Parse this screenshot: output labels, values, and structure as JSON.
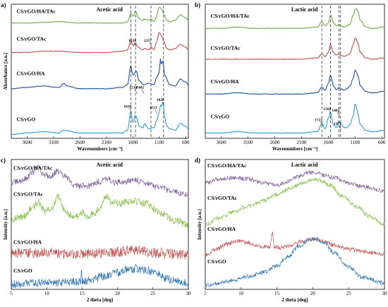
{
  "chart_data": [
    {
      "panel": "a)",
      "type": "line",
      "title": "Acetic acid",
      "xlabel": "Wavenumbers [cm⁻¹]",
      "ylabel": "Absorbance [a.u.]",
      "xlim": [
        3900,
        550
      ],
      "x_reversed": true,
      "xticks": [
        3600,
        3100,
        2600,
        2100,
        1600,
        1100,
        600
      ],
      "grid": false,
      "dashed_guides": [
        1639,
        1550,
        1257,
        1020
      ],
      "series": [
        {
          "name": "CS/rGO/HA/TAc",
          "color": "#70ad47",
          "label_xy": [
            3800,
            0.935
          ],
          "offset": 0.84,
          "shape": "ftir_acetic_tac",
          "x": [
            3900,
            3600,
            3300,
            3000,
            2600,
            2100,
            1800,
            1700,
            1639,
            1590,
            1550,
            1500,
            1420,
            1380,
            1300,
            1257,
            1200,
            1160,
            1100,
            1050,
            1020,
            960,
            900,
            800,
            700,
            600,
            550
          ],
          "y": [
            0.02,
            0.02,
            0.025,
            0.03,
            0.02,
            0.02,
            0.02,
            0.03,
            0.09,
            0.07,
            0.11,
            0.06,
            0.04,
            0.05,
            0.04,
            0.05,
            0.03,
            0.06,
            0.14,
            0.12,
            0.09,
            0.04,
            0.03,
            0.04,
            0.08,
            0.06,
            0.04
          ]
        },
        {
          "name": "CS/rGO/TAc",
          "color": "#c0504d",
          "label_xy": [
            3800,
            0.73
          ],
          "offset": 0.63,
          "shape": "ftir_acetic_tac",
          "x": [
            3900,
            3600,
            3300,
            3000,
            2600,
            2100,
            1800,
            1700,
            1639,
            1590,
            1550,
            1500,
            1420,
            1380,
            1300,
            1257,
            1200,
            1160,
            1100,
            1050,
            1020,
            960,
            900,
            800,
            700,
            600,
            550
          ],
          "y": [
            0.01,
            0.01,
            0.02,
            0.02,
            0.01,
            0.01,
            0.02,
            0.03,
            0.1,
            0.06,
            0.08,
            0.05,
            0.03,
            0.04,
            0.03,
            0.05,
            0.03,
            0.08,
            0.16,
            0.13,
            0.1,
            0.04,
            0.03,
            0.04,
            0.07,
            0.05,
            0.03
          ]
        },
        {
          "name": "CS/rGO/HA",
          "color": "#1f4e9c",
          "label_xy": [
            3800,
            0.47
          ],
          "offset": 0.35,
          "shape": "ftir_acetic_ha",
          "x": [
            3900,
            3600,
            3300,
            3000,
            2900,
            2850,
            2600,
            2100,
            1800,
            1700,
            1639,
            1600,
            1534,
            1480,
            1400,
            1300,
            1200,
            1153,
            1100,
            1080,
            1060,
            1030,
            1000,
            900,
            800,
            700,
            600,
            550
          ],
          "y": [
            0.02,
            0.03,
            0.04,
            0.03,
            0.06,
            0.04,
            0.02,
            0.02,
            0.03,
            0.05,
            0.19,
            0.12,
            0.15,
            0.08,
            0.05,
            0.06,
            0.05,
            0.1,
            0.14,
            0.24,
            0.2,
            0.23,
            0.12,
            0.05,
            0.04,
            0.09,
            0.07,
            0.05
          ]
        },
        {
          "name": "CS/rGO",
          "color": "#2e9bd6",
          "label_xy": [
            3800,
            0.13
          ],
          "offset": 0.02,
          "shape": "ftir_acetic_rgo",
          "x": [
            3900,
            3600,
            3300,
            3000,
            2900,
            2600,
            2100,
            1800,
            1700,
            1639,
            1600,
            1550,
            1534,
            1480,
            1402,
            1380,
            1300,
            1200,
            1153,
            1100,
            1080,
            1060,
            1030,
            1000,
            960,
            900,
            800,
            700,
            600,
            550
          ],
          "y": [
            0.01,
            0.02,
            0.03,
            0.02,
            0.04,
            0.02,
            0.02,
            0.02,
            0.04,
            0.18,
            0.1,
            0.15,
            0.14,
            0.07,
            0.06,
            0.09,
            0.05,
            0.06,
            0.11,
            0.17,
            0.23,
            0.22,
            0.25,
            0.14,
            0.07,
            0.05,
            0.04,
            0.09,
            0.07,
            0.05
          ]
        }
      ],
      "annotations": [
        {
          "text": "1550",
          "x": 1550,
          "y": 0.72
        },
        {
          "text": "1257",
          "x": 1257,
          "y": 0.72
        },
        {
          "text": "1534",
          "x": 1534,
          "y": 0.37
        },
        {
          "text": "1402",
          "x": 1402,
          "y": 0.37
        },
        {
          "text": "1639",
          "x": 1639,
          "y": 0.23
        },
        {
          "text": "1153",
          "x": 1153,
          "y": 0.22
        },
        {
          "text": "1020",
          "x": 1020,
          "y": 0.28
        }
      ]
    },
    {
      "panel": "b)",
      "type": "line",
      "title": "Lactic acid",
      "xlabel": "Wavenumbers [cm⁻¹]",
      "ylabel": "",
      "xlim": [
        3900,
        550
      ],
      "x_reversed": true,
      "xticks": [
        3600,
        3100,
        2600,
        2100,
        1600,
        1100,
        600
      ],
      "grid": false,
      "dashed_guides": [
        1721,
        1560,
        1402,
        1371
      ],
      "series": [
        {
          "name": "CS/rGO/HA/TAc",
          "color": "#70ad47",
          "label_xy": [
            3800,
            0.9
          ],
          "offset": 0.8,
          "shape": "ftir_lactic",
          "x": [
            3900,
            3600,
            3300,
            3000,
            2600,
            2100,
            1800,
            1721,
            1660,
            1600,
            1560,
            1500,
            1450,
            1402,
            1371,
            1300,
            1250,
            1200,
            1130,
            1100,
            1080,
            1050,
            1000,
            900,
            800,
            700,
            600,
            550
          ],
          "y": [
            0.02,
            0.02,
            0.03,
            0.02,
            0.02,
            0.02,
            0.03,
            0.07,
            0.04,
            0.06,
            0.12,
            0.06,
            0.04,
            0.05,
            0.04,
            0.03,
            0.04,
            0.05,
            0.12,
            0.16,
            0.17,
            0.15,
            0.08,
            0.03,
            0.02,
            0.02,
            0.03,
            0.03
          ]
        },
        {
          "name": "CS/rGO/TAc",
          "color": "#c0504d",
          "label_xy": [
            3800,
            0.66
          ],
          "offset": 0.57,
          "shape": "ftir_lactic",
          "x": [
            3900,
            3600,
            3300,
            3000,
            2600,
            2100,
            1800,
            1721,
            1660,
            1600,
            1560,
            1500,
            1450,
            1402,
            1371,
            1300,
            1250,
            1200,
            1130,
            1100,
            1080,
            1050,
            1000,
            900,
            800,
            700,
            600,
            550
          ],
          "y": [
            0.02,
            0.02,
            0.02,
            0.02,
            0.02,
            0.02,
            0.03,
            0.06,
            0.04,
            0.07,
            0.13,
            0.07,
            0.05,
            0.06,
            0.05,
            0.04,
            0.05,
            0.06,
            0.13,
            0.18,
            0.17,
            0.14,
            0.07,
            0.03,
            0.02,
            0.02,
            0.03,
            0.03
          ]
        },
        {
          "name": "CS/rGO/HA",
          "color": "#1f4e9c",
          "label_xy": [
            3800,
            0.41
          ],
          "offset": 0.31,
          "shape": "ftir_lactic",
          "x": [
            3900,
            3600,
            3300,
            3000,
            2600,
            2100,
            1800,
            1721,
            1660,
            1600,
            1560,
            1500,
            1450,
            1402,
            1371,
            1300,
            1250,
            1200,
            1130,
            1100,
            1080,
            1050,
            1000,
            900,
            800,
            700,
            600,
            550
          ],
          "y": [
            0.02,
            0.02,
            0.03,
            0.02,
            0.02,
            0.02,
            0.03,
            0.07,
            0.05,
            0.1,
            0.16,
            0.08,
            0.05,
            0.07,
            0.06,
            0.05,
            0.06,
            0.08,
            0.14,
            0.2,
            0.19,
            0.16,
            0.08,
            0.04,
            0.03,
            0.03,
            0.04,
            0.04
          ]
        },
        {
          "name": "CS/rGO",
          "color": "#2e9bd6",
          "label_xy": [
            3800,
            0.15
          ],
          "offset": 0.02,
          "shape": "ftir_lactic",
          "x": [
            3900,
            3600,
            3300,
            3000,
            2600,
            2100,
            1800,
            1721,
            1660,
            1600,
            1560,
            1500,
            1450,
            1402,
            1371,
            1300,
            1250,
            1200,
            1130,
            1100,
            1080,
            1050,
            1000,
            900,
            800,
            700,
            600,
            550
          ],
          "y": [
            0.02,
            0.02,
            0.03,
            0.02,
            0.02,
            0.02,
            0.03,
            0.09,
            0.05,
            0.13,
            0.17,
            0.08,
            0.06,
            0.11,
            0.09,
            0.06,
            0.06,
            0.08,
            0.15,
            0.24,
            0.22,
            0.17,
            0.08,
            0.04,
            0.03,
            0.03,
            0.04,
            0.04
          ]
        }
      ],
      "annotations": [
        {
          "text": "1721",
          "x": 1721,
          "y": 0.13
        },
        {
          "text": "1560",
          "x": 1560,
          "y": 0.21
        },
        {
          "text": "1402",
          "x": 1402,
          "y": 0.2
        },
        {
          "text": "1371",
          "x": 1371,
          "y": 0.1
        }
      ]
    },
    {
      "panel": "c)",
      "type": "line",
      "title": "Acetic acid",
      "xlabel": "2 theta [deg]",
      "ylabel": "Intensity [a.u.]",
      "xlim": [
        5,
        30
      ],
      "x_reversed": false,
      "xticks": [
        5,
        10,
        15,
        20,
        25,
        30
      ],
      "grid": false,
      "series": [
        {
          "name": "CS/rGO/HA/TAc",
          "color": "#8064a2",
          "label_xy": [
            5.3,
            0.92
          ],
          "noise": 0.03,
          "x": [
            5,
            6,
            7,
            8,
            8.7,
            9.5,
            10.5,
            11.5,
            12.5,
            14,
            16,
            17.5,
            18.5,
            19.5,
            21,
            22.5,
            24,
            26,
            28,
            30
          ],
          "y": [
            0.82,
            0.83,
            0.85,
            0.9,
            0.95,
            0.89,
            0.87,
            0.91,
            0.87,
            0.8,
            0.8,
            0.83,
            0.86,
            0.82,
            0.83,
            0.84,
            0.82,
            0.78,
            0.75,
            0.73
          ]
        },
        {
          "name": "CS/rGO/TAc",
          "color": "#8cc152",
          "label_xy": [
            5.3,
            0.72
          ],
          "noise": 0.035,
          "x": [
            5,
            6,
            7,
            7.8,
            8.8,
            9.8,
            10.8,
            11.6,
            12.5,
            13.5,
            14.5,
            15.1,
            15.6,
            16.5,
            17.5,
            18.3,
            19.2,
            20.5,
            21.5,
            22.5,
            24,
            26,
            28,
            30
          ],
          "y": [
            0.54,
            0.55,
            0.57,
            0.62,
            0.67,
            0.6,
            0.63,
            0.71,
            0.62,
            0.57,
            0.56,
            0.6,
            0.56,
            0.58,
            0.63,
            0.72,
            0.67,
            0.66,
            0.68,
            0.68,
            0.66,
            0.59,
            0.53,
            0.5
          ]
        },
        {
          "name": "CS/rGO/HA",
          "color": "#c0504d",
          "label_xy": [
            5.3,
            0.35
          ],
          "noise": 0.05,
          "x": [
            5,
            8,
            11,
            14,
            16,
            18,
            20,
            22,
            24,
            26,
            28,
            30
          ],
          "y": [
            0.28,
            0.28,
            0.28,
            0.27,
            0.27,
            0.28,
            0.29,
            0.3,
            0.29,
            0.28,
            0.27,
            0.27
          ]
        },
        {
          "name": "CS/rGO",
          "color": "#2e75b6",
          "label_xy": [
            5.3,
            0.13
          ],
          "noise": 0.04,
          "x": [
            5,
            8,
            11,
            13,
            14.8,
            14.9,
            15.0,
            16,
            18,
            20,
            21.5,
            22.5,
            24,
            25.5,
            27,
            28.5,
            30
          ],
          "y": [
            0.04,
            0.05,
            0.05,
            0.06,
            0.06,
            0.15,
            0.06,
            0.07,
            0.1,
            0.13,
            0.15,
            0.16,
            0.15,
            0.12,
            0.08,
            0.06,
            0.05
          ]
        }
      ]
    },
    {
      "panel": "d)",
      "type": "line",
      "title": "Lactic acid",
      "xlabel": "2 theta [deg]",
      "ylabel": "Intensity [a.u.]",
      "xlim": [
        5,
        30
      ],
      "x_reversed": false,
      "xticks": [
        5,
        10,
        15,
        20,
        25,
        30
      ],
      "grid": false,
      "series": [
        {
          "name": "CS/rGO/HA/TAc",
          "color": "#8064a2",
          "label_xy": [
            5.3,
            0.94
          ],
          "noise": 0.02,
          "x": [
            5,
            7,
            9,
            11,
            13,
            15,
            16.5,
            18,
            19.5,
            20.5,
            21.5,
            23,
            25,
            27,
            30
          ],
          "y": [
            0.82,
            0.85,
            0.86,
            0.85,
            0.82,
            0.8,
            0.83,
            0.87,
            0.9,
            0.9,
            0.88,
            0.86,
            0.82,
            0.79,
            0.76
          ]
        },
        {
          "name": "CS/rGO/TAc",
          "color": "#8cc152",
          "label_xy": [
            5.3,
            0.69
          ],
          "noise": 0.02,
          "x": [
            5,
            7,
            9,
            11,
            13,
            15,
            17,
            18.5,
            20,
            21,
            22.5,
            24,
            26,
            28,
            30
          ],
          "y": [
            0.5,
            0.55,
            0.6,
            0.64,
            0.68,
            0.73,
            0.78,
            0.82,
            0.85,
            0.84,
            0.8,
            0.72,
            0.64,
            0.56,
            0.5
          ]
        },
        {
          "name": "CS/rGO/HA",
          "color": "#c0504d",
          "label_xy": [
            5.3,
            0.45
          ],
          "noise": 0.02,
          "x": [
            5,
            6.5,
            8,
            9.5,
            11,
            12.5,
            14,
            14.4,
            14.6,
            14.8,
            15.5,
            17,
            18.5,
            20,
            21.5,
            23,
            25,
            27,
            30
          ],
          "y": [
            0.26,
            0.31,
            0.35,
            0.37,
            0.36,
            0.33,
            0.33,
            0.44,
            0.33,
            0.33,
            0.32,
            0.34,
            0.37,
            0.39,
            0.37,
            0.34,
            0.31,
            0.29,
            0.27
          ]
        },
        {
          "name": "CS/rGO",
          "color": "#2e75b6",
          "label_xy": [
            5.3,
            0.2
          ],
          "noise": 0.02,
          "x": [
            5,
            7,
            9,
            11,
            13,
            15,
            16.5,
            18,
            19.5,
            20.5,
            21.5,
            23,
            25,
            27,
            30
          ],
          "y": [
            0.03,
            0.05,
            0.07,
            0.1,
            0.13,
            0.18,
            0.25,
            0.33,
            0.38,
            0.39,
            0.36,
            0.28,
            0.17,
            0.09,
            0.05
          ]
        }
      ]
    }
  ]
}
